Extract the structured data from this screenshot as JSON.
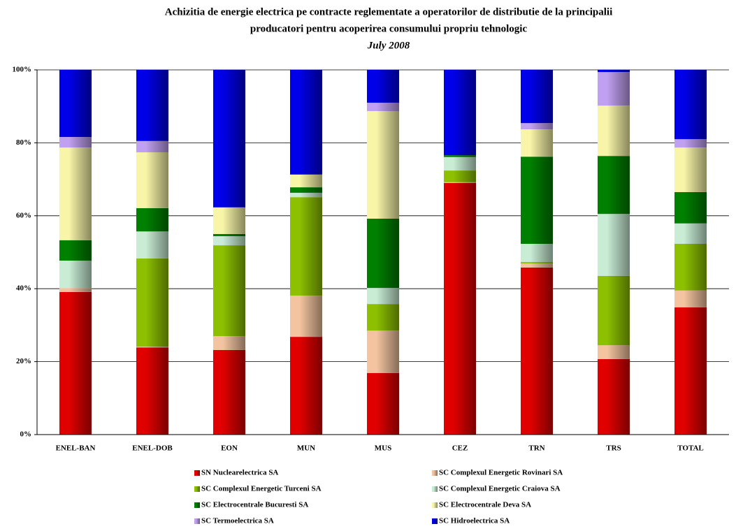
{
  "chart_data": {
    "type": "stacked_bar",
    "title": [
      "Achizitia de energie electrica pe contracte reglementate a operatorilor de distributie de la principalii",
      "producatori pentru acoperirea consumului propriu tehnologic"
    ],
    "subtitle": "July 2008",
    "categories": [
      "ENEL-BAN",
      "ENEL-DOB",
      "EON",
      "MUN",
      "MUS",
      "CEZ",
      "TRN",
      "TRS",
      "TOTAL"
    ],
    "series": [
      {
        "name": "SN Nuclearelectrica SA",
        "color": "#e00000",
        "values": [
          39.1,
          23.9,
          23.2,
          26.8,
          16.9,
          69.0,
          45.8,
          20.7,
          34.9
        ]
      },
      {
        "name": "SC Complexul Energetic Rovinari SA",
        "color": "#f4c4a0",
        "values": [
          1.1,
          0.2,
          3.8,
          11.3,
          11.6,
          0.2,
          1.1,
          3.8,
          4.6
        ]
      },
      {
        "name": "SC Complexul Energetic Turceni SA",
        "color": "#8cc000",
        "values": [
          0,
          24.2,
          24.9,
          27.0,
          7.3,
          3.2,
          0.4,
          19.0,
          12.8
        ]
      },
      {
        "name": "SC Complexul Energetic Craiova SA",
        "color": "#c8ecd4",
        "values": [
          7.5,
          7.4,
          2.5,
          1.2,
          4.4,
          3.7,
          5.0,
          17.0,
          5.6
        ]
      },
      {
        "name": "SC Electrocentrale Bucuresti SA",
        "color": "#008000",
        "values": [
          5.6,
          6.4,
          0.6,
          1.5,
          19.0,
          0.5,
          23.9,
          15.9,
          8.6
        ]
      },
      {
        "name": "SC Electrocentrale Deva SA",
        "color": "#f8f4a8",
        "values": [
          25.4,
          15.3,
          7.3,
          3.5,
          29.5,
          0,
          7.5,
          13.8,
          12.2
        ]
      },
      {
        "name": "SC Termoelectrica SA",
        "color": "#c0a0f0",
        "values": [
          2.9,
          3.1,
          0,
          0,
          2.3,
          0,
          1.7,
          9.2,
          2.3
        ]
      },
      {
        "name": "SC Hidroelectrica SA",
        "color": "#0000e8",
        "values": [
          18.4,
          19.5,
          37.7,
          28.7,
          9.0,
          23.4,
          14.6,
          0.6,
          19.0
        ]
      }
    ],
    "ylim": [
      0,
      100
    ],
    "yticks": [
      {
        "value": 0,
        "label": "0%"
      },
      {
        "value": 20,
        "label": "20%"
      },
      {
        "value": 40,
        "label": "40%"
      },
      {
        "value": 60,
        "label": "60%"
      },
      {
        "value": 80,
        "label": "80%"
      },
      {
        "value": 100,
        "label": "100%"
      }
    ],
    "grid": true
  }
}
